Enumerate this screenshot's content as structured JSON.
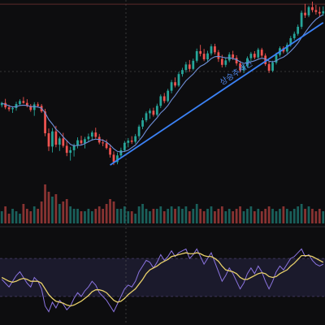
{
  "colors": {
    "background": "#0d0d0f",
    "up": "#26a69a",
    "down": "#ef5350",
    "ma": "#6f8fd8",
    "trendline": "#3b82f6",
    "trend_label": "#4f86e8",
    "rsi_band_fill": "#1b1a2c",
    "rsi_band_line": "#4a3f6a",
    "rsi_line": "#8b74e0",
    "rsi_signal": "#e8d06a",
    "hline": "#5c2a2a",
    "crosshair": "#6a6a6a"
  },
  "main_panel": {
    "trendline_label": "상승추세선"
  },
  "chart_data": [
    {
      "type": "candlestick",
      "panel": "price",
      "bars": [
        [
          107.0,
          107.9,
          106.4,
          107.6
        ],
        [
          107.6,
          108.7,
          105.9,
          106.4
        ],
        [
          106.4,
          107.1,
          105.3,
          105.9
        ],
        [
          105.9,
          106.7,
          104.9,
          106.2
        ],
        [
          106.2,
          107.9,
          105.5,
          107.3
        ],
        [
          107.3,
          108.6,
          106.8,
          108.1
        ],
        [
          108.1,
          109.2,
          107.4,
          107.6
        ],
        [
          107.6,
          108.6,
          106.4,
          106.8
        ],
        [
          106.8,
          107.3,
          105.2,
          105.7
        ],
        [
          105.7,
          107.8,
          104.1,
          107.2
        ],
        [
          107.2,
          107.8,
          106.4,
          106.8
        ],
        [
          106.8,
          107.3,
          104.9,
          105.3
        ],
        [
          105.3,
          106.0,
          98.6,
          99.4
        ],
        [
          99.4,
          100.7,
          94.6,
          95.8
        ],
        [
          95.8,
          100.8,
          94.2,
          99.9
        ],
        [
          99.9,
          101.4,
          95.6,
          96.3
        ],
        [
          96.3,
          98.5,
          94.6,
          98.0
        ],
        [
          98.0,
          99.5,
          95.5,
          96.0
        ],
        [
          96.0,
          97.6,
          93.2,
          94.1
        ],
        [
          94.1,
          95.7,
          92.0,
          94.8
        ],
        [
          94.8,
          96.6,
          93.1,
          96.1
        ],
        [
          96.1,
          98.3,
          95.3,
          97.5
        ],
        [
          97.5,
          98.7,
          96.2,
          96.7
        ],
        [
          96.7,
          98.4,
          95.3,
          97.8
        ],
        [
          97.8,
          99.3,
          97.0,
          98.5
        ],
        [
          98.5,
          100.1,
          97.4,
          99.6
        ],
        [
          99.6,
          100.9,
          97.9,
          98.4
        ],
        [
          98.4,
          99.2,
          96.4,
          96.9
        ],
        [
          96.9,
          97.8,
          95.9,
          96.7
        ],
        [
          96.7,
          97.7,
          95.0,
          95.4
        ],
        [
          95.4,
          96.4,
          92.8,
          93.6
        ],
        [
          93.6,
          94.5,
          90.8,
          91.6
        ],
        [
          91.6,
          94.2,
          91.0,
          93.4
        ],
        [
          93.4,
          95.5,
          92.9,
          94.8
        ],
        [
          94.8,
          97.3,
          94.3,
          96.8
        ],
        [
          96.8,
          98.1,
          95.6,
          97.4
        ],
        [
          97.4,
          98.6,
          96.5,
          97.1
        ],
        [
          97.1,
          99.2,
          96.6,
          98.6
        ],
        [
          98.6,
          101.7,
          97.9,
          101.2
        ],
        [
          101.2,
          103.6,
          100.5,
          102.9
        ],
        [
          102.9,
          105.3,
          102.4,
          104.8
        ],
        [
          104.8,
          106.1,
          103.3,
          105.5
        ],
        [
          105.5,
          106.3,
          103.9,
          104.4
        ],
        [
          104.4,
          107.4,
          104.0,
          106.8
        ],
        [
          106.8,
          109.9,
          106.2,
          109.4
        ],
        [
          109.4,
          110.3,
          107.5,
          108.1
        ],
        [
          108.1,
          111.4,
          107.7,
          110.9
        ],
        [
          110.9,
          113.8,
          110.2,
          113.2
        ],
        [
          113.2,
          114.5,
          111.8,
          112.3
        ],
        [
          112.3,
          116.0,
          111.9,
          115.4
        ],
        [
          115.4,
          117.1,
          114.7,
          116.5
        ],
        [
          116.5,
          118.7,
          115.8,
          118.0
        ],
        [
          118.0,
          119.2,
          116.0,
          116.8
        ],
        [
          116.8,
          119.6,
          116.4,
          119.0
        ],
        [
          119.0,
          122.3,
          118.5,
          121.6
        ],
        [
          121.6,
          123.3,
          120.2,
          120.9
        ],
        [
          120.9,
          122.2,
          118.9,
          119.4
        ],
        [
          119.4,
          121.7,
          118.8,
          121.0
        ],
        [
          121.0,
          123.5,
          120.4,
          122.9
        ],
        [
          122.9,
          123.6,
          120.7,
          121.3
        ],
        [
          121.3,
          121.9,
          118.7,
          119.5
        ],
        [
          119.5,
          120.6,
          117.2,
          117.9
        ],
        [
          117.9,
          119.8,
          117.3,
          119.1
        ],
        [
          119.1,
          121.3,
          118.6,
          120.7
        ],
        [
          120.7,
          121.7,
          119.2,
          119.8
        ],
        [
          119.8,
          120.5,
          117.7,
          118.3
        ],
        [
          118.3,
          119.0,
          115.8,
          116.4
        ],
        [
          116.4,
          118.1,
          115.7,
          117.6
        ],
        [
          117.6,
          120.2,
          117.1,
          119.7
        ],
        [
          119.7,
          121.4,
          118.8,
          120.9
        ],
        [
          120.9,
          121.6,
          119.4,
          119.9
        ],
        [
          119.9,
          122.5,
          119.3,
          122.0
        ],
        [
          122.0,
          122.5,
          119.9,
          120.4
        ],
        [
          120.4,
          121.0,
          117.6,
          118.1
        ],
        [
          118.1,
          118.8,
          115.7,
          116.3
        ],
        [
          116.3,
          119.0,
          115.9,
          118.5
        ],
        [
          118.5,
          121.2,
          118.0,
          120.6
        ],
        [
          120.6,
          122.9,
          120.1,
          122.4
        ],
        [
          122.4,
          122.9,
          121.0,
          121.5
        ],
        [
          121.5,
          123.9,
          121.0,
          123.3
        ],
        [
          123.3,
          125.7,
          122.8,
          125.1
        ],
        [
          125.1,
          126.9,
          124.6,
          126.3
        ],
        [
          126.3,
          128.8,
          125.8,
          128.2
        ],
        [
          128.2,
          132.6,
          127.6,
          132.0
        ],
        [
          132.0,
          134.4,
          130.6,
          131.3
        ],
        [
          131.3,
          133.9,
          130.8,
          133.5
        ],
        [
          133.5,
          135.0,
          132.1,
          132.7
        ],
        [
          132.7,
          134.1,
          131.5,
          132.2
        ],
        [
          132.2,
          133.6,
          130.9,
          131.8
        ],
        [
          131.8,
          133.7,
          131.2,
          132.4
        ]
      ],
      "moving_average": [
        107.5,
        107.2,
        106.8,
        106.5,
        106.6,
        106.9,
        107.0,
        106.9,
        106.6,
        106.6,
        106.5,
        106.2,
        104.9,
        103.1,
        101.9,
        100.5,
        99.6,
        98.4,
        97.4,
        96.4,
        96.0,
        96.1,
        96.2,
        96.6,
        97.1,
        97.6,
        97.8,
        97.7,
        97.5,
        97.0,
        96.2,
        95.2,
        94.5,
        94.3,
        94.5,
        94.8,
        95.5,
        96.2,
        97.4,
        98.6,
        100.1,
        101.4,
        102.5,
        103.6,
        104.9,
        105.8,
        106.9,
        108.4,
        109.6,
        111.0,
        112.3,
        113.6,
        114.5,
        115.4,
        116.6,
        117.5,
        118.0,
        118.7,
        119.6,
        120.1,
        120.2,
        120.0,
        119.8,
        119.8,
        119.6,
        119.3,
        118.7,
        118.3,
        118.4,
        118.7,
        119.0,
        119.4,
        119.7,
        119.5,
        118.9,
        118.7,
        119.0,
        119.6,
        120.0,
        120.7,
        121.6,
        122.6,
        123.8,
        125.3,
        126.6,
        128.0,
        129.2,
        130.2,
        130.9,
        131.5
      ],
      "volume": [
        5,
        7,
        4,
        6,
        5,
        4,
        8,
        6,
        5,
        7,
        6,
        9,
        16,
        13,
        11,
        12,
        8,
        9,
        10,
        7,
        6,
        6,
        5,
        5,
        6,
        5,
        6,
        7,
        6,
        8,
        10,
        9,
        6,
        6,
        7,
        5,
        5,
        4,
        7,
        8,
        6,
        5,
        6,
        6,
        7,
        5,
        6,
        7,
        6,
        7,
        6,
        7,
        5,
        6,
        8,
        6,
        5,
        6,
        7,
        5,
        6,
        7,
        5,
        6,
        5,
        6,
        7,
        5,
        6,
        7,
        5,
        6,
        5,
        6,
        7,
        6,
        5,
        6,
        7,
        6,
        5,
        6,
        7,
        8,
        6,
        7,
        6,
        5,
        6,
        5
      ],
      "resistance_level": 134.3,
      "trendline": {
        "from": [
          30,
          90.8
        ],
        "to": [
          89,
          129.3
        ]
      }
    },
    {
      "type": "line",
      "panel": "indicator",
      "ylim": [
        0,
        100
      ],
      "band": [
        30,
        70
      ],
      "series": [
        {
          "values": [
            48,
            44,
            40,
            46,
            52,
            56,
            50,
            44,
            40,
            50,
            46,
            38,
            20,
            14,
            24,
            18,
            26,
            22,
            16,
            20,
            28,
            34,
            30,
            36,
            40,
            46,
            42,
            34,
            30,
            26,
            20,
            14,
            22,
            30,
            38,
            42,
            40,
            46,
            56,
            62,
            68,
            66,
            60,
            66,
            74,
            68,
            72,
            78,
            72,
            76,
            78,
            80,
            70,
            74,
            80,
            72,
            64,
            70,
            76,
            66,
            56,
            46,
            52,
            60,
            54,
            46,
            38,
            44,
            54,
            60,
            54,
            62,
            56,
            46,
            38,
            46,
            56,
            62,
            58,
            64,
            70,
            72,
            76,
            80,
            72,
            74,
            68,
            64,
            62,
            64
          ]
        },
        {
          "values": [
            50,
            48,
            46,
            45,
            46,
            48,
            49,
            48,
            46,
            46,
            46,
            44,
            38,
            32,
            28,
            25,
            24,
            23,
            21,
            20,
            21,
            23,
            25,
            28,
            31,
            35,
            37,
            37,
            36,
            34,
            30,
            26,
            24,
            25,
            28,
            32,
            35,
            38,
            43,
            48,
            54,
            58,
            60,
            62,
            65,
            67,
            69,
            72,
            73,
            74,
            75,
            76,
            75,
            75,
            76,
            75,
            73,
            72,
            72,
            70,
            67,
            62,
            58,
            57,
            56,
            54,
            50,
            48,
            48,
            50,
            52,
            54,
            55,
            54,
            51,
            50,
            51,
            54,
            56,
            58,
            62,
            65,
            69,
            73,
            73,
            73,
            72,
            70,
            68,
            66
          ]
        }
      ]
    }
  ]
}
